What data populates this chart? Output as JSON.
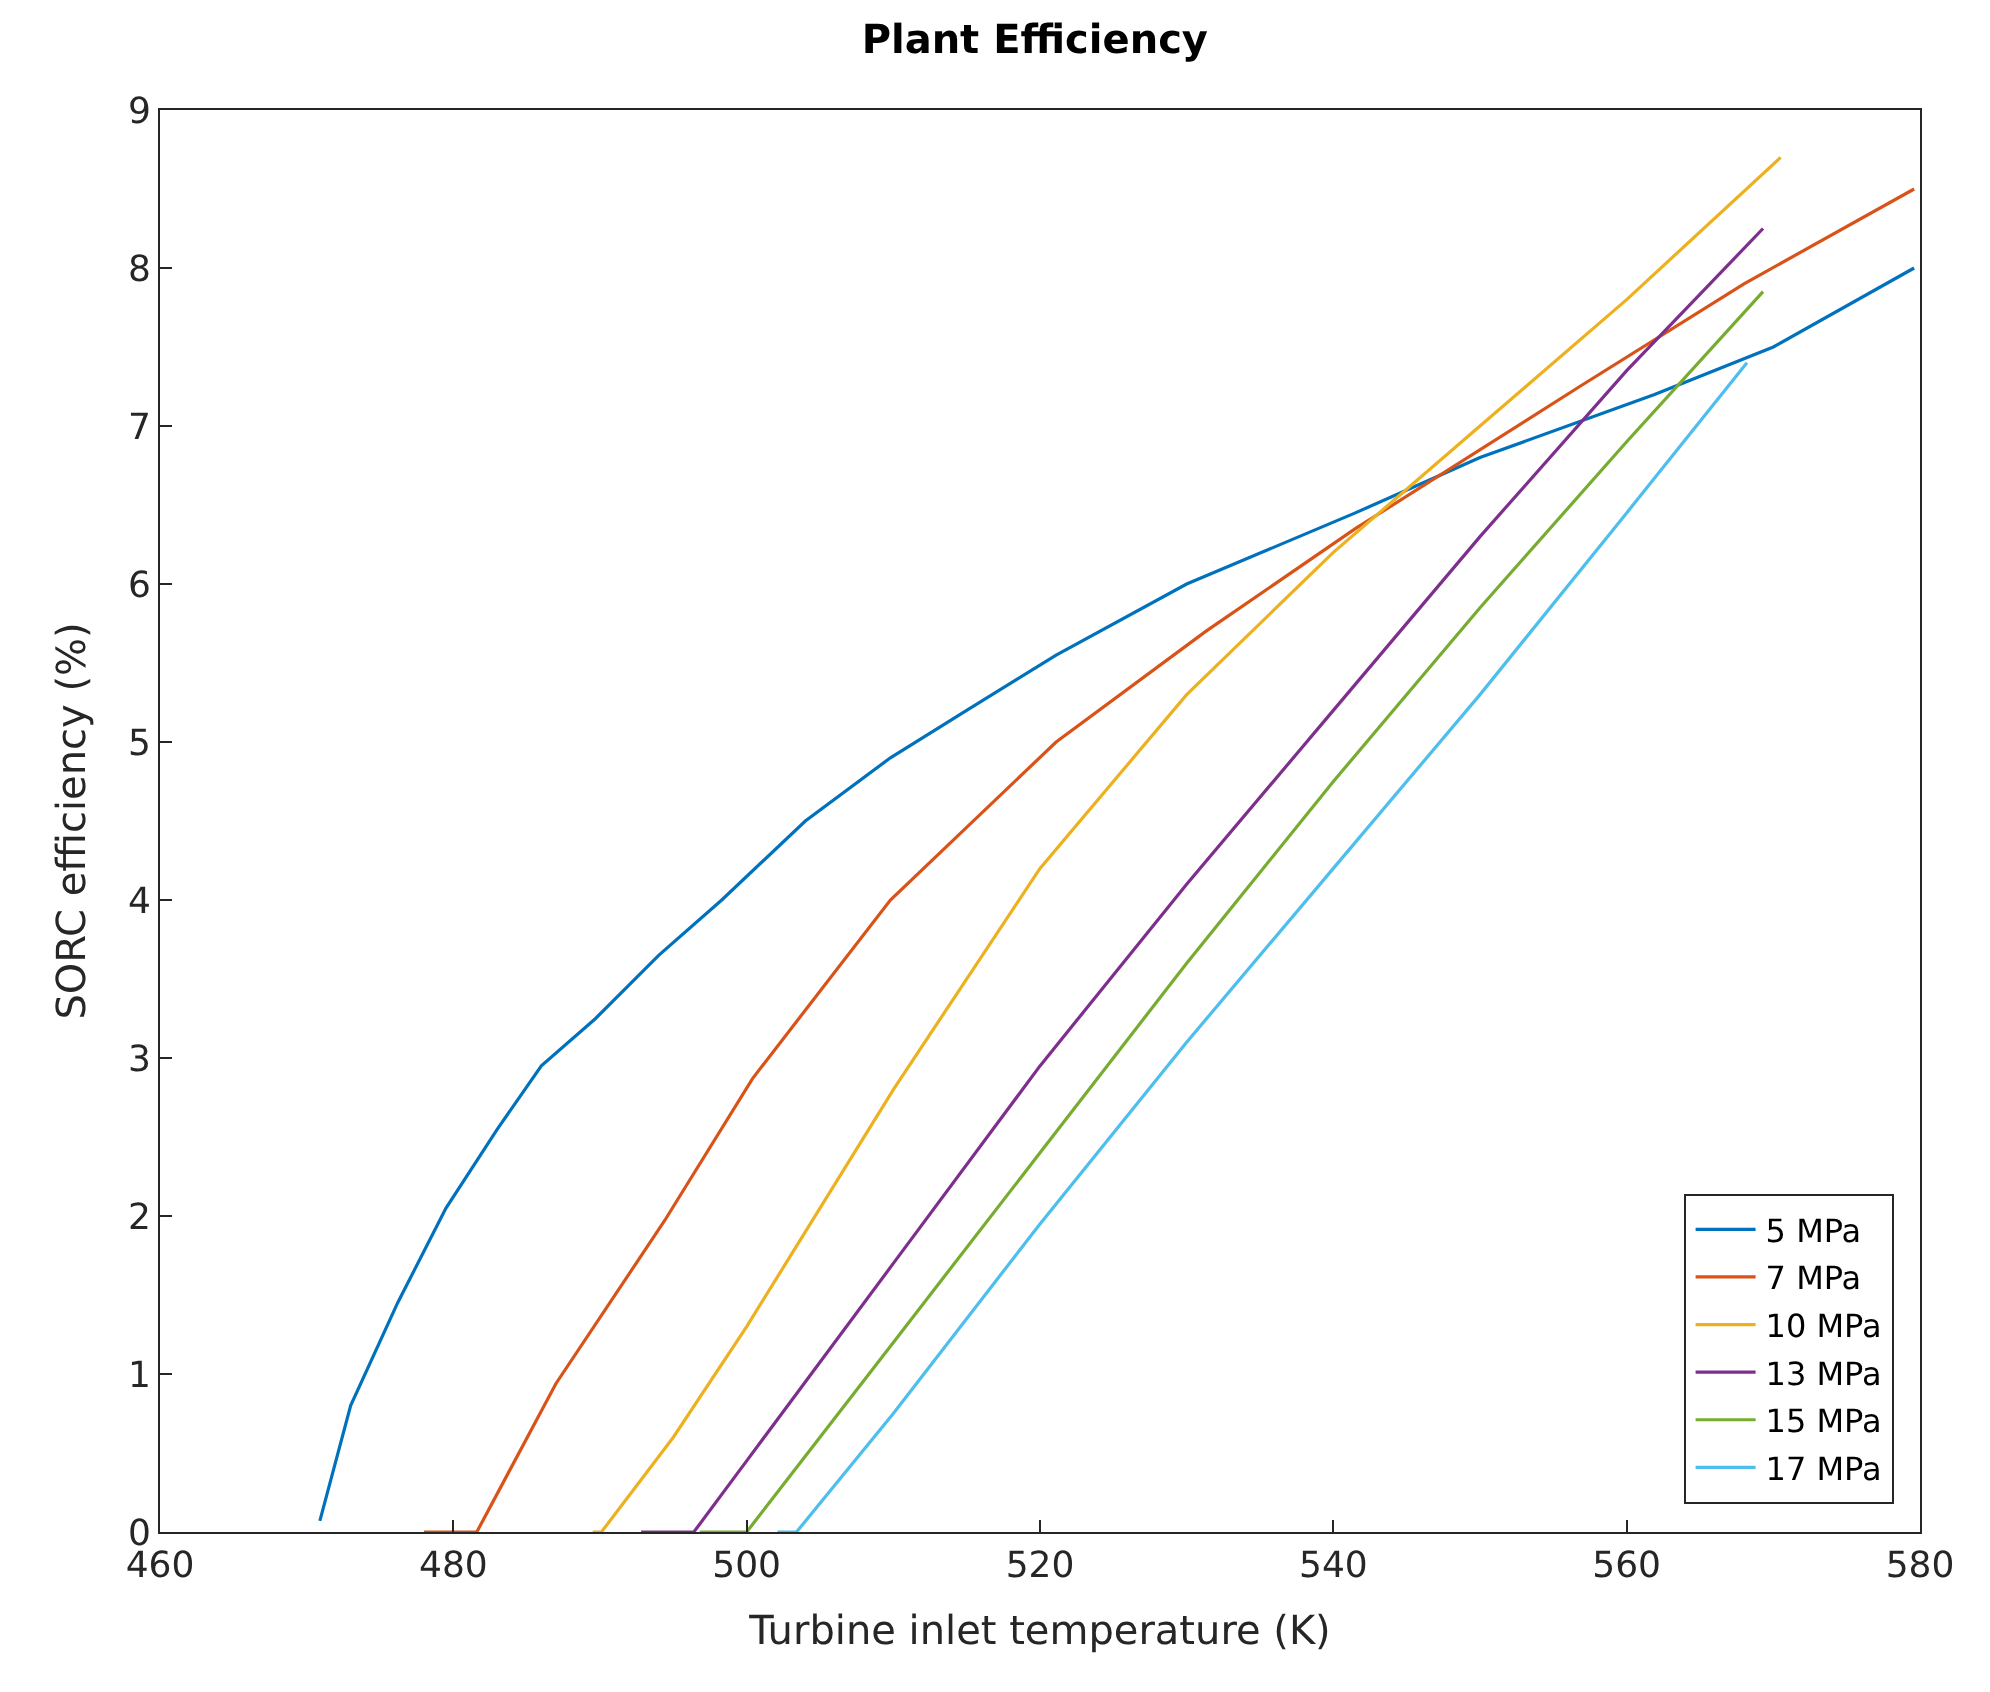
{
  "chart_data": {
    "type": "line",
    "title": "Plant Efficiency",
    "xlabel": "Turbine inlet temperature (K)",
    "ylabel": "SORC efficiency (%)",
    "xlim": [
      460,
      580
    ],
    "xticks": [
      460,
      480,
      500,
      520,
      540,
      560,
      580
    ],
    "ylim": [
      0,
      9
    ],
    "yticks": [
      0,
      1,
      2,
      3,
      4,
      5,
      6,
      7,
      8,
      9
    ],
    "legend": "bottom right",
    "line_style": "solid",
    "marker": "none",
    "series": [
      {
        "name": "5 MPa",
        "color": "#0072bd",
        "x": [
          470.9,
          473,
          476.2,
          479.5,
          483,
          486,
          489.7,
          494,
          498.3,
          504,
          509.8,
          515,
          521.1,
          530,
          541.5,
          550,
          561.9,
          570,
          579.6
        ],
        "values": [
          0.07,
          0.8,
          1.45,
          2.05,
          2.55,
          2.95,
          3.25,
          3.65,
          4.0,
          4.5,
          4.9,
          5.2,
          5.55,
          6.0,
          6.45,
          6.8,
          7.2,
          7.5,
          8.0
        ]
      },
      {
        "name": "7 MPa",
        "color": "#d95319",
        "x": [
          478,
          481.6,
          487,
          494.4,
          500.4,
          509.8,
          521.1,
          531.3,
          541.5,
          556.8,
          568,
          579.6
        ],
        "values": [
          0,
          0,
          0.94,
          1.97,
          2.87,
          4.0,
          5.0,
          5.7,
          6.35,
          7.25,
          7.9,
          8.5
        ]
      },
      {
        "name": "10 MPa",
        "color": "#edb120",
        "x": [
          489.5,
          490.1,
          495,
          500,
          505,
          510,
          520,
          530,
          540,
          550,
          560,
          570.5
        ],
        "values": [
          0,
          0,
          0.6,
          1.3,
          2.05,
          2.8,
          4.2,
          5.3,
          6.2,
          7.0,
          7.8,
          8.7
        ]
      },
      {
        "name": "13 MPa",
        "color": "#7e2f8e",
        "x": [
          492.8,
          496.4,
          500,
          510,
          520,
          530,
          540,
          550,
          560,
          569.3
        ],
        "values": [
          0,
          0,
          0.45,
          1.7,
          2.95,
          4.1,
          5.2,
          6.3,
          7.35,
          8.25
        ]
      },
      {
        "name": "15 MPa",
        "color": "#77ac30",
        "x": [
          496.8,
          500,
          510,
          520,
          530,
          540,
          550,
          560,
          569.3
        ],
        "values": [
          0,
          0,
          1.2,
          2.4,
          3.6,
          4.75,
          5.85,
          6.9,
          7.85
        ]
      },
      {
        "name": "17 MPa",
        "color": "#4dbeee",
        "x": [
          502.1,
          503.4,
          510,
          520,
          530,
          540,
          550,
          560,
          568.2
        ],
        "values": [
          0,
          0,
          0.75,
          1.95,
          3.1,
          4.2,
          5.3,
          6.45,
          7.4
        ]
      }
    ]
  }
}
